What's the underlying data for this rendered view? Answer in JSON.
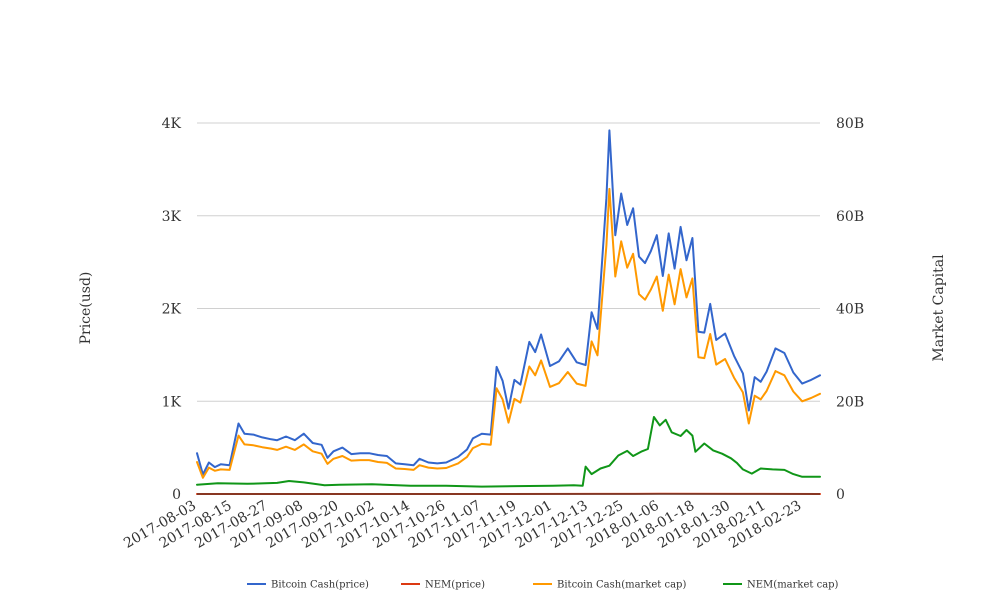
{
  "chart_data": {
    "type": "line",
    "title": "",
    "ylabel": "Price(usd)",
    "y2label": "Market Capital",
    "x_ticks": [
      "2017-08-03",
      "2017-08-15",
      "2017-08-27",
      "2017-09-08",
      "2017-09-20",
      "2017-10-02",
      "2017-10-14",
      "2017-10-26",
      "2017-11-07",
      "2017-11-19",
      "2017-12-01",
      "2017-12-13",
      "2017-12-25",
      "2018-01-06",
      "2018-01-18",
      "2018-01-30",
      "2018-02-11",
      "2018-02-23"
    ],
    "x_range": [
      "2017-08-03",
      "2018-03-01"
    ],
    "ylim": [
      0,
      4000
    ],
    "y2lim": [
      0,
      80000000000
    ],
    "y_ticks": [
      {
        "value": 0,
        "label": "0"
      },
      {
        "value": 1000,
        "label": "1K"
      },
      {
        "value": 2000,
        "label": "2K"
      },
      {
        "value": 3000,
        "label": "3K"
      },
      {
        "value": 4000,
        "label": "4K"
      }
    ],
    "y2_ticks": [
      {
        "value": 0,
        "label": "0"
      },
      {
        "value": 20000000000,
        "label": "20B"
      },
      {
        "value": 40000000000,
        "label": "40B"
      },
      {
        "value": 60000000000,
        "label": "60B"
      },
      {
        "value": 80000000000,
        "label": "80B"
      }
    ],
    "grid": true,
    "legend_position": "bottom",
    "series": [
      {
        "name": "Bitcoin Cash(price)",
        "axis": "left",
        "color": "#3366cc",
        "points": [
          [
            "2017-08-03",
            440
          ],
          [
            "2017-08-05",
            210
          ],
          [
            "2017-08-07",
            340
          ],
          [
            "2017-08-09",
            290
          ],
          [
            "2017-08-11",
            320
          ],
          [
            "2017-08-14",
            310
          ],
          [
            "2017-08-17",
            760
          ],
          [
            "2017-08-19",
            650
          ],
          [
            "2017-08-22",
            640
          ],
          [
            "2017-08-25",
            610
          ],
          [
            "2017-08-28",
            590
          ],
          [
            "2017-08-30",
            580
          ],
          [
            "2017-09-02",
            620
          ],
          [
            "2017-09-05",
            580
          ],
          [
            "2017-09-08",
            650
          ],
          [
            "2017-09-11",
            550
          ],
          [
            "2017-09-14",
            530
          ],
          [
            "2017-09-16",
            390
          ],
          [
            "2017-09-18",
            460
          ],
          [
            "2017-09-21",
            500
          ],
          [
            "2017-09-24",
            430
          ],
          [
            "2017-09-27",
            440
          ],
          [
            "2017-09-30",
            440
          ],
          [
            "2017-10-03",
            420
          ],
          [
            "2017-10-06",
            410
          ],
          [
            "2017-10-09",
            330
          ],
          [
            "2017-10-12",
            320
          ],
          [
            "2017-10-15",
            310
          ],
          [
            "2017-10-17",
            380
          ],
          [
            "2017-10-20",
            340
          ],
          [
            "2017-10-23",
            330
          ],
          [
            "2017-10-26",
            340
          ],
          [
            "2017-10-30",
            400
          ],
          [
            "2017-11-02",
            480
          ],
          [
            "2017-11-04",
            600
          ],
          [
            "2017-11-07",
            650
          ],
          [
            "2017-11-10",
            640
          ],
          [
            "2017-11-12",
            1370
          ],
          [
            "2017-11-14",
            1220
          ],
          [
            "2017-11-16",
            920
          ],
          [
            "2017-11-18",
            1230
          ],
          [
            "2017-11-20",
            1180
          ],
          [
            "2017-11-23",
            1640
          ],
          [
            "2017-11-25",
            1530
          ],
          [
            "2017-11-27",
            1720
          ],
          [
            "2017-11-30",
            1380
          ],
          [
            "2017-12-03",
            1430
          ],
          [
            "2017-12-06",
            1570
          ],
          [
            "2017-12-09",
            1420
          ],
          [
            "2017-12-12",
            1390
          ],
          [
            "2017-12-14",
            1960
          ],
          [
            "2017-12-16",
            1780
          ],
          [
            "2017-12-19",
            3190
          ],
          [
            "2017-12-20",
            3920
          ],
          [
            "2017-12-22",
            2790
          ],
          [
            "2017-12-24",
            3240
          ],
          [
            "2017-12-26",
            2900
          ],
          [
            "2017-12-28",
            3080
          ],
          [
            "2017-12-30",
            2560
          ],
          [
            "2018-01-01",
            2490
          ],
          [
            "2018-01-03",
            2620
          ],
          [
            "2018-01-05",
            2790
          ],
          [
            "2018-01-07",
            2350
          ],
          [
            "2018-01-09",
            2810
          ],
          [
            "2018-01-11",
            2430
          ],
          [
            "2018-01-13",
            2880
          ],
          [
            "2018-01-15",
            2520
          ],
          [
            "2018-01-17",
            2760
          ],
          [
            "2018-01-19",
            1750
          ],
          [
            "2018-01-21",
            1740
          ],
          [
            "2018-01-23",
            2050
          ],
          [
            "2018-01-25",
            1660
          ],
          [
            "2018-01-28",
            1730
          ],
          [
            "2018-01-31",
            1490
          ],
          [
            "2018-02-03",
            1300
          ],
          [
            "2018-02-05",
            900
          ],
          [
            "2018-02-07",
            1260
          ],
          [
            "2018-02-09",
            1210
          ],
          [
            "2018-02-11",
            1320
          ],
          [
            "2018-02-14",
            1570
          ],
          [
            "2018-02-17",
            1520
          ],
          [
            "2018-02-20",
            1310
          ],
          [
            "2018-02-23",
            1190
          ],
          [
            "2018-02-26",
            1230
          ],
          [
            "2018-03-01",
            1280
          ]
        ]
      },
      {
        "name": "NEM(price)",
        "axis": "left",
        "color": "#dc3912",
        "points": [
          [
            "2017-08-03",
            0.2
          ],
          [
            "2017-09-15",
            0.3
          ],
          [
            "2017-11-01",
            0.2
          ],
          [
            "2017-12-15",
            0.8
          ],
          [
            "2018-01-06",
            2.0
          ],
          [
            "2018-02-01",
            0.8
          ],
          [
            "2018-03-01",
            0.4
          ]
        ]
      },
      {
        "name": "Bitcoin Cash(market cap)",
        "axis": "right",
        "color": "#ff9900",
        "points": [
          [
            "2017-08-03",
            6900000000
          ],
          [
            "2017-08-05",
            3500000000
          ],
          [
            "2017-08-07",
            5700000000
          ],
          [
            "2017-08-09",
            5000000000
          ],
          [
            "2017-08-11",
            5300000000
          ],
          [
            "2017-08-14",
            5200000000
          ],
          [
            "2017-08-17",
            12600000000
          ],
          [
            "2017-08-19",
            10700000000
          ],
          [
            "2017-08-22",
            10500000000
          ],
          [
            "2017-08-25",
            10100000000
          ],
          [
            "2017-08-28",
            9800000000
          ],
          [
            "2017-08-30",
            9500000000
          ],
          [
            "2017-09-02",
            10200000000
          ],
          [
            "2017-09-05",
            9500000000
          ],
          [
            "2017-09-08",
            10700000000
          ],
          [
            "2017-09-11",
            9200000000
          ],
          [
            "2017-09-14",
            8700000000
          ],
          [
            "2017-09-16",
            6500000000
          ],
          [
            "2017-09-18",
            7600000000
          ],
          [
            "2017-09-21",
            8200000000
          ],
          [
            "2017-09-24",
            7200000000
          ],
          [
            "2017-09-27",
            7300000000
          ],
          [
            "2017-09-30",
            7300000000
          ],
          [
            "2017-10-03",
            6900000000
          ],
          [
            "2017-10-06",
            6700000000
          ],
          [
            "2017-10-09",
            5500000000
          ],
          [
            "2017-10-12",
            5400000000
          ],
          [
            "2017-10-15",
            5200000000
          ],
          [
            "2017-10-17",
            6200000000
          ],
          [
            "2017-10-20",
            5700000000
          ],
          [
            "2017-10-23",
            5500000000
          ],
          [
            "2017-10-26",
            5600000000
          ],
          [
            "2017-10-30",
            6600000000
          ],
          [
            "2017-11-02",
            8000000000
          ],
          [
            "2017-11-04",
            9900000000
          ],
          [
            "2017-11-07",
            10800000000
          ],
          [
            "2017-11-10",
            10600000000
          ],
          [
            "2017-11-12",
            22800000000
          ],
          [
            "2017-11-14",
            20400000000
          ],
          [
            "2017-11-16",
            15400000000
          ],
          [
            "2017-11-18",
            20500000000
          ],
          [
            "2017-11-20",
            19700000000
          ],
          [
            "2017-11-23",
            27500000000
          ],
          [
            "2017-11-25",
            25600000000
          ],
          [
            "2017-11-27",
            28800000000
          ],
          [
            "2017-11-30",
            23100000000
          ],
          [
            "2017-12-03",
            23900000000
          ],
          [
            "2017-12-06",
            26300000000
          ],
          [
            "2017-12-09",
            23800000000
          ],
          [
            "2017-12-12",
            23300000000
          ],
          [
            "2017-12-14",
            32900000000
          ],
          [
            "2017-12-16",
            29900000000
          ],
          [
            "2017-12-19",
            53600000000
          ],
          [
            "2017-12-20",
            65800000000
          ],
          [
            "2017-12-22",
            46900000000
          ],
          [
            "2017-12-24",
            54500000000
          ],
          [
            "2017-12-26",
            48800000000
          ],
          [
            "2017-12-28",
            51800000000
          ],
          [
            "2017-12-30",
            43100000000
          ],
          [
            "2018-01-01",
            41900000000
          ],
          [
            "2018-01-03",
            44100000000
          ],
          [
            "2018-01-05",
            46900000000
          ],
          [
            "2018-01-07",
            39500000000
          ],
          [
            "2018-01-09",
            47300000000
          ],
          [
            "2018-01-11",
            40900000000
          ],
          [
            "2018-01-13",
            48500000000
          ],
          [
            "2018-01-15",
            42400000000
          ],
          [
            "2018-01-17",
            46500000000
          ],
          [
            "2018-01-19",
            29500000000
          ],
          [
            "2018-01-21",
            29300000000
          ],
          [
            "2018-01-23",
            34500000000
          ],
          [
            "2018-01-25",
            27900000000
          ],
          [
            "2018-01-28",
            29100000000
          ],
          [
            "2018-01-31",
            25100000000
          ],
          [
            "2018-02-03",
            21900000000
          ],
          [
            "2018-02-05",
            15200000000
          ],
          [
            "2018-02-07",
            21200000000
          ],
          [
            "2018-02-09",
            20400000000
          ],
          [
            "2018-02-11",
            22200000000
          ],
          [
            "2018-02-14",
            26500000000
          ],
          [
            "2018-02-17",
            25600000000
          ],
          [
            "2018-02-20",
            22100000000
          ],
          [
            "2018-02-23",
            20000000000
          ],
          [
            "2018-02-26",
            20700000000
          ],
          [
            "2018-03-01",
            21600000000
          ]
        ]
      },
      {
        "name": "NEM(market cap)",
        "axis": "right",
        "color": "#109618",
        "points": [
          [
            "2017-08-03",
            2000000000
          ],
          [
            "2017-08-10",
            2300000000
          ],
          [
            "2017-08-20",
            2200000000
          ],
          [
            "2017-08-30",
            2400000000
          ],
          [
            "2017-09-03",
            2800000000
          ],
          [
            "2017-09-08",
            2500000000
          ],
          [
            "2017-09-15",
            1900000000
          ],
          [
            "2017-09-20",
            2000000000
          ],
          [
            "2017-10-01",
            2100000000
          ],
          [
            "2017-10-14",
            1800000000
          ],
          [
            "2017-10-26",
            1800000000
          ],
          [
            "2017-11-07",
            1600000000
          ],
          [
            "2017-11-19",
            1700000000
          ],
          [
            "2017-12-01",
            1800000000
          ],
          [
            "2017-12-08",
            1900000000
          ],
          [
            "2017-12-11",
            1800000000
          ],
          [
            "2017-12-12",
            5900000000
          ],
          [
            "2017-12-14",
            4300000000
          ],
          [
            "2017-12-17",
            5500000000
          ],
          [
            "2017-12-20",
            6100000000
          ],
          [
            "2017-12-23",
            8300000000
          ],
          [
            "2017-12-26",
            9300000000
          ],
          [
            "2017-12-28",
            8200000000
          ],
          [
            "2017-12-31",
            9200000000
          ],
          [
            "2018-01-02",
            9700000000
          ],
          [
            "2018-01-04",
            16600000000
          ],
          [
            "2018-01-06",
            14800000000
          ],
          [
            "2018-01-08",
            16000000000
          ],
          [
            "2018-01-10",
            13300000000
          ],
          [
            "2018-01-13",
            12500000000
          ],
          [
            "2018-01-15",
            13800000000
          ],
          [
            "2018-01-17",
            12600000000
          ],
          [
            "2018-01-18",
            9100000000
          ],
          [
            "2018-01-21",
            10900000000
          ],
          [
            "2018-01-24",
            9400000000
          ],
          [
            "2018-01-27",
            8700000000
          ],
          [
            "2018-01-30",
            7700000000
          ],
          [
            "2018-02-01",
            6700000000
          ],
          [
            "2018-02-03",
            5300000000
          ],
          [
            "2018-02-06",
            4400000000
          ],
          [
            "2018-02-09",
            5500000000
          ],
          [
            "2018-02-13",
            5300000000
          ],
          [
            "2018-02-17",
            5200000000
          ],
          [
            "2018-02-20",
            4300000000
          ],
          [
            "2018-02-23",
            3700000000
          ],
          [
            "2018-03-01",
            3700000000
          ]
        ]
      }
    ]
  }
}
